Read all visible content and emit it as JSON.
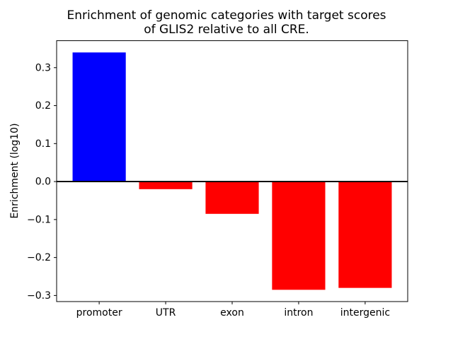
{
  "chart_data": {
    "type": "bar",
    "title": "Enrichment of genomic categories with target scores\nof GLIS2 relative to all CRE.",
    "title_lines": [
      "Enrichment of genomic categories with target scores",
      "of GLIS2 relative to all CRE."
    ],
    "xlabel": "",
    "ylabel": "Enrichment (log10)",
    "categories": [
      "promoter",
      "UTR",
      "exon",
      "intron",
      "intergenic"
    ],
    "values": [
      0.34,
      -0.02,
      -0.085,
      -0.285,
      -0.28
    ],
    "bar_colors": [
      "#0000ff",
      "#ff0000",
      "#ff0000",
      "#ff0000",
      "#ff0000"
    ],
    "baseline": 0,
    "baseline_color": "#000000",
    "yticks": {
      "values": [
        -0.3,
        -0.2,
        -0.1,
        0.0,
        0.1,
        0.2,
        0.3
      ],
      "labels": [
        "−0.3",
        "−0.2",
        "−0.1",
        "0.0",
        "0.1",
        "0.2",
        "0.3"
      ]
    },
    "ylim": [
      -0.316,
      0.371
    ],
    "xlim": [
      -0.64,
      4.64
    ],
    "grid": false,
    "legend": null,
    "background": "#ffffff",
    "axes_color": "#000000"
  }
}
